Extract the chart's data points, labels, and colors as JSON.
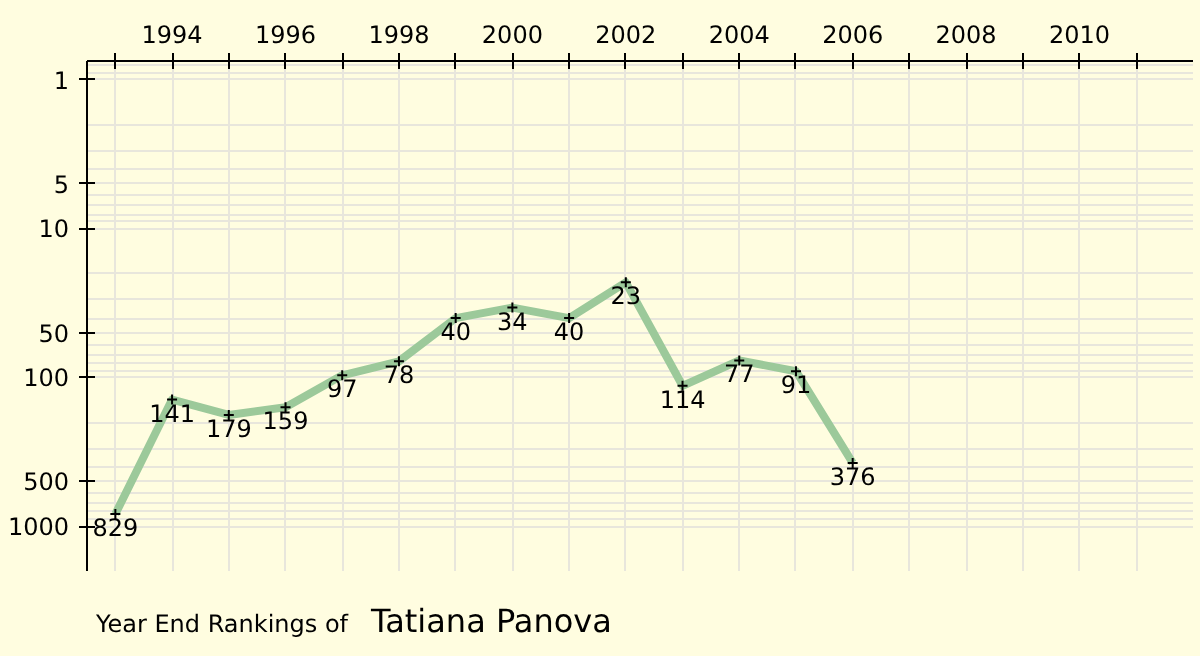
{
  "chart_data": {
    "type": "line",
    "title": "Year End Rankings of",
    "subtitle": "Tatiana Panova",
    "x": [
      1993,
      1994,
      1995,
      1996,
      1997,
      1998,
      1999,
      2000,
      2001,
      2002,
      2003,
      2004,
      2005,
      2006
    ],
    "series": [
      {
        "color": "#9cc99a",
        "values": [
          829,
          141,
          179,
          159,
          97,
          78,
          40,
          34,
          40,
          23,
          114,
          77,
          91,
          376
        ]
      }
    ],
    "data_labels": true,
    "log": "y",
    "marker": "cross",
    "line_style": "solid",
    "grid": true,
    "xlim": [
      1992.5,
      2012
    ],
    "xticks": [
      {
        "value": 1993,
        "label": null
      },
      1994,
      {
        "value": 1995,
        "label": null
      },
      1996,
      {
        "value": 1997,
        "label": null
      },
      1998,
      {
        "value": 1999,
        "label": null
      },
      2000,
      {
        "value": 2001,
        "label": null
      },
      2002,
      {
        "value": 2003,
        "label": null
      },
      2004,
      {
        "value": 2005,
        "label": null
      },
      2006,
      {
        "value": 2007,
        "label": null
      },
      2008,
      {
        "value": 2009,
        "label": null
      },
      2010,
      {
        "value": 2011,
        "label": null
      }
    ],
    "ylim": [
      2000,
      0.75
    ],
    "yticks": [
      1,
      5,
      10,
      50,
      100,
      500,
      1000
    ]
  }
}
